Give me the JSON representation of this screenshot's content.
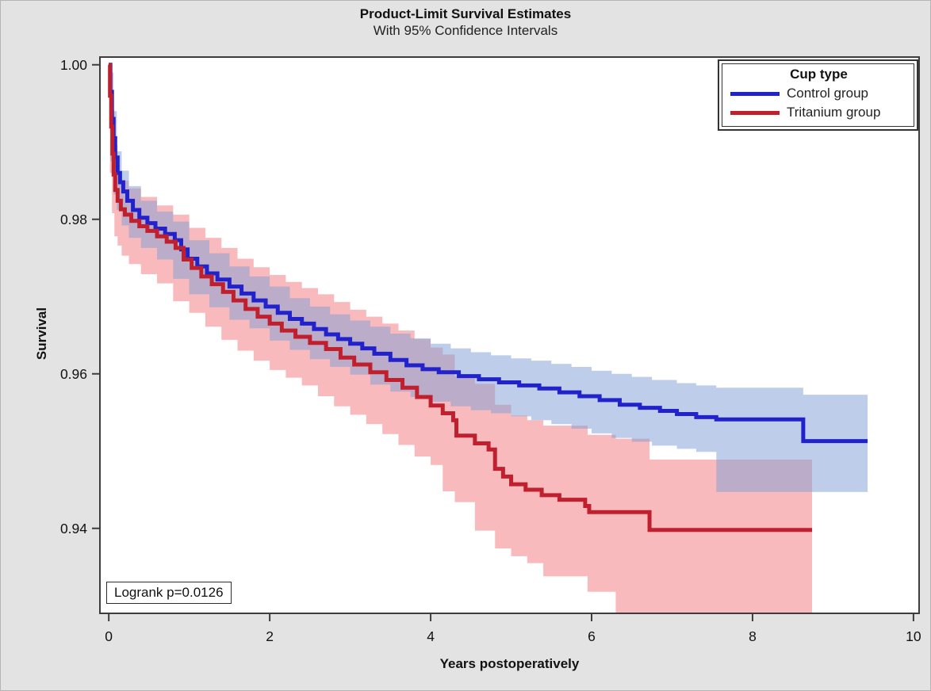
{
  "header": {
    "title": "Product-Limit Survival Estimates",
    "subtitle": "With 95% Confidence Intervals"
  },
  "legend": {
    "title": "Cup type",
    "entries": [
      {
        "label": "Control group",
        "color": "#2222cc"
      },
      {
        "label": "Tritanium group",
        "color": "#c0202e"
      }
    ]
  },
  "annotation": {
    "text": "Logrank p=0.0126"
  },
  "axes": {
    "x": {
      "label": "Years postoperatively",
      "ticks": [
        0,
        2,
        4,
        6,
        8,
        10
      ]
    },
    "y": {
      "label": "Survival",
      "ticks": [
        {
          "label": "1.00",
          "value": 1.0
        },
        {
          "label": "0.98",
          "value": 0.98
        },
        {
          "label": "0.96",
          "value": 0.96
        },
        {
          "label": "0.94",
          "value": 0.94
        }
      ]
    }
  },
  "chart_data": {
    "type": "line",
    "subtype": "kaplan-meier-step-with-ci",
    "title": "Product-Limit Survival Estimates",
    "subtitle": "With 95% Confidence Intervals",
    "xlabel": "Years postoperatively",
    "ylabel": "Survival",
    "xlim": [
      -0.11,
      10.07
    ],
    "ylim": [
      0.929,
      1.001
    ],
    "grid": false,
    "legend_position": "top-right-inside",
    "annotation": "Logrank p=0.0126",
    "colors": {
      "plot_background": "#ffffff",
      "outer_background": "#e3e3e3",
      "frame": "#3d3d3d",
      "control_line": "#2222cc",
      "tritanium_line": "#c0202e",
      "control_band": "rgba(125,158,213,0.50)",
      "tritanium_band": "rgba(242,130,133,0.55)"
    },
    "series": [
      {
        "name": "Control group",
        "steps": [
          [
            0,
            1.0
          ],
          [
            0.02,
            0.9965
          ],
          [
            0.04,
            0.993
          ],
          [
            0.06,
            0.9905
          ],
          [
            0.08,
            0.988
          ],
          [
            0.11,
            0.986
          ],
          [
            0.14,
            0.9848
          ],
          [
            0.18,
            0.9836
          ],
          [
            0.23,
            0.9824
          ],
          [
            0.3,
            0.9812
          ],
          [
            0.38,
            0.9802
          ],
          [
            0.48,
            0.9795
          ],
          [
            0.58,
            0.9788
          ],
          [
            0.7,
            0.9781
          ],
          [
            0.82,
            0.9773
          ],
          [
            0.9,
            0.9761
          ],
          [
            0.98,
            0.9749
          ],
          [
            1.1,
            0.9739
          ],
          [
            1.22,
            0.973
          ],
          [
            1.35,
            0.9722
          ],
          [
            1.5,
            0.9713
          ],
          [
            1.65,
            0.9704
          ],
          [
            1.8,
            0.9695
          ],
          [
            1.95,
            0.9687
          ],
          [
            2.1,
            0.9679
          ],
          [
            2.25,
            0.9671
          ],
          [
            2.4,
            0.9665
          ],
          [
            2.55,
            0.9658
          ],
          [
            2.7,
            0.9651
          ],
          [
            2.85,
            0.9645
          ],
          [
            3.0,
            0.9639
          ],
          [
            3.15,
            0.9633
          ],
          [
            3.3,
            0.9626
          ],
          [
            3.5,
            0.9618
          ],
          [
            3.7,
            0.9611
          ],
          [
            3.9,
            0.9606
          ],
          [
            4.1,
            0.9602
          ],
          [
            4.35,
            0.9597
          ],
          [
            4.6,
            0.9593
          ],
          [
            4.85,
            0.9589
          ],
          [
            5.1,
            0.9585
          ],
          [
            5.35,
            0.9581
          ],
          [
            5.6,
            0.9576
          ],
          [
            5.85,
            0.9571
          ],
          [
            6.1,
            0.9566
          ],
          [
            6.35,
            0.956
          ],
          [
            6.6,
            0.9556
          ],
          [
            6.85,
            0.9552
          ],
          [
            7.06,
            0.9548
          ],
          [
            7.3,
            0.9544
          ],
          [
            7.55,
            0.9541
          ],
          [
            8.63,
            0.9513
          ],
          [
            9.43,
            0.9513
          ]
        ],
        "ci": [
          [
            0.02,
            0.999,
            0.9935
          ],
          [
            0.06,
            0.994,
            0.9875
          ],
          [
            0.1,
            0.9888,
            0.9832
          ],
          [
            0.16,
            0.9863,
            0.9812
          ],
          [
            0.25,
            0.9843,
            0.9792
          ],
          [
            0.4,
            0.9824,
            0.9776
          ],
          [
            0.6,
            0.981,
            0.9763
          ],
          [
            0.8,
            0.9797,
            0.9748
          ],
          [
            1.0,
            0.9773,
            0.9723
          ],
          [
            1.25,
            0.9756,
            0.9703
          ],
          [
            1.5,
            0.9739,
            0.9686
          ],
          [
            1.75,
            0.9726,
            0.967
          ],
          [
            2.0,
            0.9713,
            0.9659
          ],
          [
            2.25,
            0.9698,
            0.9643
          ],
          [
            2.5,
            0.9687,
            0.9631
          ],
          [
            2.75,
            0.9677,
            0.9619
          ],
          [
            3.0,
            0.9669,
            0.9609
          ],
          [
            3.25,
            0.9661,
            0.9599
          ],
          [
            3.5,
            0.9652,
            0.9586
          ],
          [
            3.75,
            0.9646,
            0.9577
          ],
          [
            4.0,
            0.9639,
            0.957
          ],
          [
            4.25,
            0.9633,
            0.9564
          ],
          [
            4.5,
            0.9628,
            0.9558
          ],
          [
            4.75,
            0.9624,
            0.9553
          ],
          [
            5.0,
            0.962,
            0.9549
          ],
          [
            5.25,
            0.9617,
            0.9545
          ],
          [
            5.5,
            0.9613,
            0.954
          ],
          [
            5.75,
            0.9609,
            0.9535
          ],
          [
            6.0,
            0.9604,
            0.9529
          ],
          [
            6.25,
            0.96,
            0.9523
          ],
          [
            6.5,
            0.9596,
            0.9517
          ],
          [
            6.75,
            0.9592,
            0.9512
          ],
          [
            7.06,
            0.9588,
            0.9507
          ],
          [
            7.3,
            0.9585,
            0.9503
          ],
          [
            7.55,
            0.9582,
            0.9499
          ],
          [
            8.63,
            0.9573,
            0.9447
          ],
          [
            9.43,
            0.9573,
            0.9447
          ]
        ]
      },
      {
        "name": "Tritanium group",
        "steps": [
          [
            0,
            1.0
          ],
          [
            0.015,
            0.996
          ],
          [
            0.03,
            0.992
          ],
          [
            0.045,
            0.9885
          ],
          [
            0.06,
            0.9858
          ],
          [
            0.08,
            0.9838
          ],
          [
            0.11,
            0.9824
          ],
          [
            0.15,
            0.9813
          ],
          [
            0.2,
            0.9806
          ],
          [
            0.28,
            0.9798
          ],
          [
            0.38,
            0.9791
          ],
          [
            0.48,
            0.9785
          ],
          [
            0.6,
            0.9778
          ],
          [
            0.72,
            0.9771
          ],
          [
            0.83,
            0.9763
          ],
          [
            0.93,
            0.9748
          ],
          [
            1.03,
            0.9737
          ],
          [
            1.15,
            0.9726
          ],
          [
            1.28,
            0.9716
          ],
          [
            1.42,
            0.9706
          ],
          [
            1.55,
            0.9695
          ],
          [
            1.7,
            0.9684
          ],
          [
            1.85,
            0.9674
          ],
          [
            2.0,
            0.9665
          ],
          [
            2.15,
            0.9656
          ],
          [
            2.32,
            0.9648
          ],
          [
            2.5,
            0.964
          ],
          [
            2.7,
            0.9632
          ],
          [
            2.88,
            0.9621
          ],
          [
            3.05,
            0.9612
          ],
          [
            3.25,
            0.9602
          ],
          [
            3.45,
            0.9592
          ],
          [
            3.65,
            0.9582
          ],
          [
            3.83,
            0.957
          ],
          [
            4.0,
            0.9559
          ],
          [
            4.15,
            0.9549
          ],
          [
            4.28,
            0.954
          ],
          [
            4.32,
            0.952
          ],
          [
            4.55,
            0.951
          ],
          [
            4.72,
            0.9502
          ],
          [
            4.8,
            0.9477
          ],
          [
            4.9,
            0.9467
          ],
          [
            5.0,
            0.9457
          ],
          [
            5.18,
            0.945
          ],
          [
            5.38,
            0.9443
          ],
          [
            5.6,
            0.9437
          ],
          [
            5.92,
            0.9429
          ],
          [
            5.97,
            0.9421
          ],
          [
            6.72,
            0.9398
          ],
          [
            8.74,
            0.9398
          ]
        ],
        "ci": [
          [
            0.015,
            0.9985,
            0.9925
          ],
          [
            0.04,
            0.9942,
            0.986
          ],
          [
            0.07,
            0.9896,
            0.9808
          ],
          [
            0.11,
            0.9863,
            0.9778
          ],
          [
            0.16,
            0.985,
            0.9766
          ],
          [
            0.25,
            0.984,
            0.9753
          ],
          [
            0.4,
            0.9829,
            0.9742
          ],
          [
            0.6,
            0.9818,
            0.9729
          ],
          [
            0.8,
            0.9806,
            0.9717
          ],
          [
            1.0,
            0.9789,
            0.9694
          ],
          [
            1.2,
            0.9776,
            0.9679
          ],
          [
            1.4,
            0.9763,
            0.9661
          ],
          [
            1.6,
            0.9749,
            0.9644
          ],
          [
            1.8,
            0.9738,
            0.963
          ],
          [
            2.0,
            0.9728,
            0.9617
          ],
          [
            2.2,
            0.9719,
            0.9605
          ],
          [
            2.4,
            0.9711,
            0.9595
          ],
          [
            2.6,
            0.9703,
            0.9585
          ],
          [
            2.8,
            0.9693,
            0.9571
          ],
          [
            3.0,
            0.9683,
            0.9558
          ],
          [
            3.2,
            0.9674,
            0.9547
          ],
          [
            3.4,
            0.9665,
            0.9535
          ],
          [
            3.6,
            0.9656,
            0.9522
          ],
          [
            3.8,
            0.9645,
            0.9508
          ],
          [
            4.0,
            0.9634,
            0.9493
          ],
          [
            4.15,
            0.9625,
            0.9482
          ],
          [
            4.3,
            0.9597,
            0.9448
          ],
          [
            4.55,
            0.9587,
            0.9434
          ],
          [
            4.8,
            0.956,
            0.9397
          ],
          [
            5.0,
            0.9546,
            0.9374
          ],
          [
            5.2,
            0.954,
            0.9364
          ],
          [
            5.4,
            0.9533,
            0.9355
          ],
          [
            5.95,
            0.9521,
            0.9338
          ],
          [
            6.3,
            0.9516,
            0.9318
          ],
          [
            6.72,
            0.9489,
            0.9245
          ],
          [
            8.74,
            0.9489,
            0.9245
          ]
        ]
      }
    ]
  }
}
